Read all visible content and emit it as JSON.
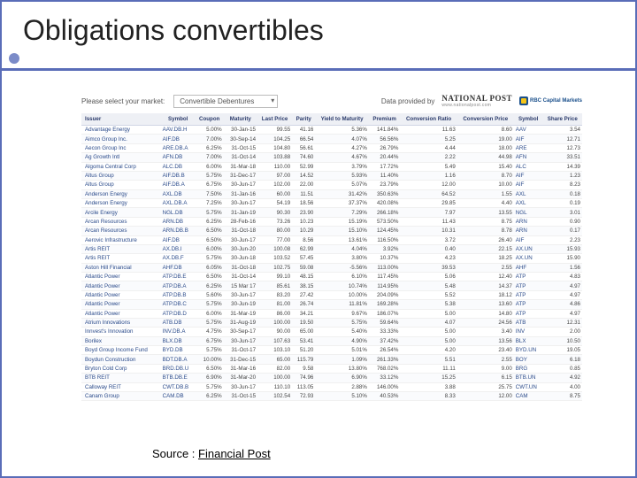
{
  "title": "Obligations convertibles",
  "marketBar": {
    "prompt": "Please select your market:",
    "selectValue": "Convertible Debentures",
    "dataProvided": "Data provided by",
    "npName": "NATIONAL POST",
    "npSub": "www.nationalpost.com",
    "rbc": "RBC Capital Markets"
  },
  "columns": [
    "Issuer",
    "Symbol",
    "Coupon",
    "Maturity",
    "Last Price",
    "Parity",
    "Yield to Maturity",
    "Premium",
    "Conversion Ratio",
    "Conversion Price",
    "Symbol",
    "Share Price"
  ],
  "rows": [
    [
      "Advantage Energy",
      "AAV.DB.H",
      "5.00%",
      "30-Jan-15",
      "99.55",
      "41.16",
      "5.36%",
      "141.84%",
      "11.63",
      "8.60",
      "AAV",
      "3.54"
    ],
    [
      "Aimco Group Inc.",
      "AIF.DB",
      "7.00%",
      "30-Sep-14",
      "104.25",
      "66.54",
      "4.07%",
      "56.56%",
      "5.25",
      "19.00",
      "AIF",
      "12.71"
    ],
    [
      "Aecon Group Inc",
      "ARE.DB.A",
      "6.25%",
      "31-Oct-15",
      "104.80",
      "56.61",
      "4.27%",
      "26.79%",
      "4.44",
      "18.00",
      "ARE",
      "12.73"
    ],
    [
      "Ag Growth Intl",
      "AFN.DB",
      "7.00%",
      "31-Oct-14",
      "103.88",
      "74.60",
      "4.67%",
      "20.44%",
      "2.22",
      "44.98",
      "AFN",
      "33.51"
    ],
    [
      "Algoma Central Corp",
      "ALC.DB",
      "6.00%",
      "31-Mar-18",
      "110.00",
      "52.99",
      "3.79%",
      "17.72%",
      "5.49",
      "15.40",
      "ALC",
      "14.39"
    ],
    [
      "Altus Group",
      "AIF.DB.B",
      "5.75%",
      "31-Dec-17",
      "97.00",
      "14.52",
      "5.93%",
      "11.40%",
      "1.16",
      "8.70",
      "AIF",
      "1.23"
    ],
    [
      "Altus Group",
      "AIF.DB.A",
      "6.75%",
      "30-Jun-17",
      "102.00",
      "22.00",
      "5.07%",
      "23.79%",
      "12.00",
      "10.00",
      "AIF",
      "8.23"
    ],
    [
      "Anderson Energy",
      "AXL.DB",
      "7.50%",
      "31-Jan-16",
      "60.00",
      "11.51",
      "31.42%",
      "350.63%",
      "64.52",
      "1.55",
      "AXL",
      "0.18"
    ],
    [
      "Anderson Energy",
      "AXL.DB.A",
      "7.25%",
      "30-Jun-17",
      "54.19",
      "18.56",
      "37.37%",
      "420.08%",
      "29.85",
      "4.40",
      "AXL",
      "0.19"
    ],
    [
      "Arcile Energy",
      "NGL.DB",
      "5.75%",
      "31-Jan-19",
      "90.30",
      "23.90",
      "7.29%",
      "266.18%",
      "7.97",
      "13.55",
      "NGL",
      "3.01"
    ],
    [
      "Arcan Resources",
      "ARN.DB",
      "6.25%",
      "28-Feb-16",
      "73.26",
      "10.23",
      "15.19%",
      "573.50%",
      "11.43",
      "8.75",
      "ARN",
      "0.90"
    ],
    [
      "Arcan Resources",
      "ARN.DB.B",
      "6.50%",
      "31-Oct-18",
      "80.00",
      "10.29",
      "15.10%",
      "124.45%",
      "10.31",
      "8.78",
      "ARN",
      "0.17"
    ],
    [
      "Aerovic Infrastructure",
      "AIF.DB",
      "6.50%",
      "30-Jun-17",
      "77.00",
      "8.56",
      "13.61%",
      "116.50%",
      "3.72",
      "26.40",
      "AIF",
      "2.23"
    ],
    [
      "Artis REIT",
      "AX.DB.I",
      "6.00%",
      "30-Jun-20",
      "100.08",
      "62.99",
      "4.04%",
      "3.92%",
      "0.40",
      "22.15",
      "AX.UN",
      "15.93"
    ],
    [
      "Artis REIT",
      "AX.DB.F",
      "5.75%",
      "30-Jun-18",
      "103.52",
      "57.45",
      "3.80%",
      "10.37%",
      "4.23",
      "18.25",
      "AX.UN",
      "15.90"
    ],
    [
      "Aston Hill Financial",
      "AHF.DB",
      "6.05%",
      "31-Oct-18",
      "102.75",
      "59.08",
      "-5.56%",
      "113.00%",
      "39.53",
      "2.55",
      "AHF",
      "1.56"
    ],
    [
      "Atlantic Power",
      "ATP.DB.E",
      "6.50%",
      "31-Oct-14",
      "99.10",
      "48.15",
      "6.10%",
      "117.45%",
      "5.06",
      "12.40",
      "ATP",
      "4.83"
    ],
    [
      "Atlantic Power",
      "ATP.DB.A",
      "6.25%",
      "15 Mar 17",
      "85.61",
      "38.15",
      "10.74%",
      "114.95%",
      "5.48",
      "14.37",
      "ATP",
      "4.97"
    ],
    [
      "Atlantic Power",
      "ATP.DB.B",
      "5.60%",
      "30-Jun-17",
      "83.20",
      "27.42",
      "10.00%",
      "204.09%",
      "5.52",
      "18.12",
      "ATP",
      "4.97"
    ],
    [
      "Atlantic Power",
      "ATP.DB.C",
      "5.75%",
      "30-Jun-19",
      "81.00",
      "26.74",
      "11.81%",
      "169.28%",
      "5.38",
      "13.60",
      "ATP",
      "4.86"
    ],
    [
      "Atlantic Power",
      "ATP.DB.D",
      "6.00%",
      "31-Mar-19",
      "86.00",
      "34.21",
      "9.67%",
      "186.07%",
      "5.00",
      "14.80",
      "ATP",
      "4.97"
    ],
    [
      "Atrium Innovations",
      "ATB.DB",
      "5.75%",
      "31-Aug-19",
      "100.00",
      "19.50",
      "5.75%",
      "59.64%",
      "4.07",
      "24.56",
      "ATB",
      "12.31"
    ],
    [
      "Innvest's Innovation",
      "INV.DB.A",
      "4.75%",
      "30-Sep-17",
      "90.00",
      "65.00",
      "5.40%",
      "33.33%",
      "5.00",
      "3.40",
      "INV",
      "2.00"
    ],
    [
      "Borilex",
      "BLX.DB",
      "6.75%",
      "30-Jun-17",
      "107.63",
      "53.41",
      "4.90%",
      "37.42%",
      "5.00",
      "13.56",
      "BLX",
      "10.50"
    ],
    [
      "Boyd Group Income Fund",
      "BYD.DB",
      "5.75%",
      "31-Oct-17",
      "103.10",
      "51.20",
      "5.01%",
      "26.54%",
      "4.20",
      "23.40",
      "BYD.UN",
      "19.05"
    ],
    [
      "Boydun Construction",
      "BDT.DB.A",
      "10.00%",
      "31-Dec-15",
      "65.00",
      "115.79",
      "1.09%",
      "261.33%",
      "5.51",
      "2.55",
      "BOY",
      "6.18"
    ],
    [
      "Bryton Cold Corp",
      "BRD.DB.U",
      "6.50%",
      "31-Mar-16",
      "82.00",
      "9.58",
      "13.80%",
      "768.02%",
      "11.11",
      "9.00",
      "BRG",
      "0.85"
    ],
    [
      "BTB REIT",
      "BTB.DB.E",
      "6.90%",
      "31-Mar-20",
      "100.00",
      "74.96",
      "6.90%",
      "33.12%",
      "15.25",
      "6.15",
      "BTB.UN",
      "4.92"
    ],
    [
      "Calloway REIT",
      "CWT.DB.B",
      "5.75%",
      "30-Jun-17",
      "110.10",
      "113.05",
      "2.88%",
      "146.00%",
      "3.88",
      "25.75",
      "CWT.UN",
      "4.00"
    ],
    [
      "Canam Group",
      "CAM.DB",
      "6.25%",
      "31-Oct-15",
      "102.54",
      "72.93",
      "5.10%",
      "40.53%",
      "8.33",
      "12.00",
      "CAM",
      "8.75"
    ]
  ],
  "source": {
    "label": "Source : ",
    "linkText": "Financial Post"
  },
  "style": {
    "accent": "#5a6db8",
    "headerBg": "#eef0f5",
    "headerText": "#2a3a6b",
    "linkColor": "#2a4a8a",
    "rowAlt": "#fafbfd",
    "titleFontSize": 32,
    "tableFontSize": 6.2
  }
}
